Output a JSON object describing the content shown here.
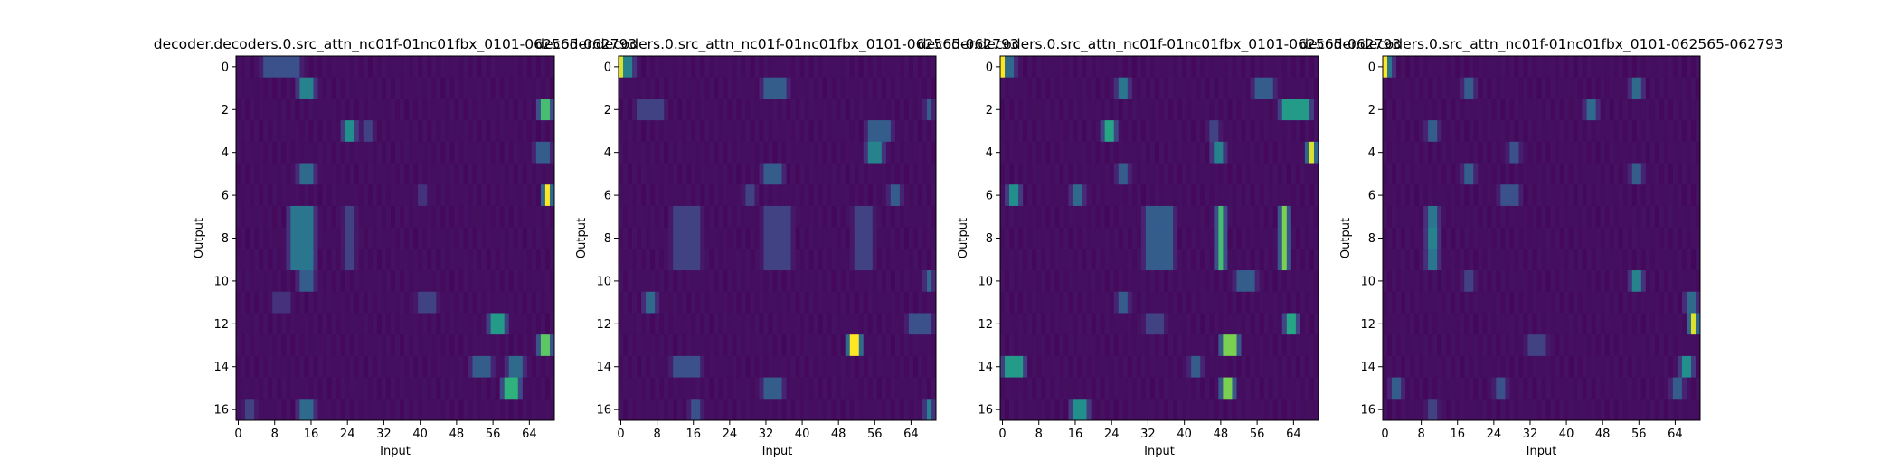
{
  "chart_data": [
    {
      "type": "heatmap",
      "title": "decoder.decoders.0.src_attn_nc01f-01nc01fbx_0101-062565-062793",
      "xlabel": "Input",
      "ylabel": "Output",
      "x_ticks": [
        0,
        8,
        16,
        24,
        32,
        40,
        48,
        56,
        64
      ],
      "y_ticks": [
        0,
        2,
        4,
        6,
        8,
        10,
        12,
        14,
        16
      ],
      "xlim": [
        0,
        70
      ],
      "ylim": [
        16,
        0
      ],
      "rows": 17,
      "cols": 70,
      "colormap": "viridis",
      "peaks": [
        {
          "row": 0,
          "cols": [
            [
              6,
              14,
              0.25
            ]
          ]
        },
        {
          "row": 1,
          "cols": [
            [
              14,
              17,
              0.45
            ]
          ]
        },
        {
          "row": 2,
          "cols": [
            [
              67,
              69,
              0.7
            ]
          ]
        },
        {
          "row": 3,
          "cols": [
            [
              24,
              26,
              0.5
            ],
            [
              28,
              30,
              0.2
            ]
          ]
        },
        {
          "row": 4,
          "cols": [
            [
              66,
              69,
              0.3
            ]
          ]
        },
        {
          "row": 5,
          "cols": [
            [
              14,
              17,
              0.35
            ]
          ]
        },
        {
          "row": 6,
          "cols": [
            [
              68,
              69,
              1.0
            ],
            [
              40,
              42,
              0.15
            ]
          ]
        },
        {
          "row": 7,
          "cols": [
            [
              12,
              17,
              0.4
            ],
            [
              24,
              26,
              0.2
            ]
          ]
        },
        {
          "row": 8,
          "cols": [
            [
              12,
              17,
              0.4
            ],
            [
              24,
              26,
              0.2
            ]
          ]
        },
        {
          "row": 9,
          "cols": [
            [
              12,
              17,
              0.4
            ],
            [
              24,
              26,
              0.2
            ]
          ]
        },
        {
          "row": 10,
          "cols": [
            [
              14,
              17,
              0.3
            ]
          ]
        },
        {
          "row": 11,
          "cols": [
            [
              8,
              12,
              0.15
            ],
            [
              40,
              44,
              0.2
            ]
          ]
        },
        {
          "row": 12,
          "cols": [
            [
              56,
              59,
              0.55
            ]
          ]
        },
        {
          "row": 13,
          "cols": [
            [
              67,
              69,
              0.75
            ]
          ]
        },
        {
          "row": 14,
          "cols": [
            [
              52,
              56,
              0.3
            ],
            [
              60,
              63,
              0.35
            ]
          ]
        },
        {
          "row": 15,
          "cols": [
            [
              59,
              62,
              0.65
            ]
          ]
        },
        {
          "row": 16,
          "cols": [
            [
              14,
              17,
              0.35
            ],
            [
              2,
              4,
              0.2
            ]
          ]
        }
      ]
    },
    {
      "type": "heatmap",
      "title": "decoder.decoders.0.src_attn_nc01f-01nc01fbx_0101-062565-062793",
      "xlabel": "Input",
      "ylabel": "Output",
      "x_ticks": [
        0,
        8,
        16,
        24,
        32,
        40,
        48,
        56,
        64
      ],
      "y_ticks": [
        0,
        2,
        4,
        6,
        8,
        10,
        12,
        14,
        16
      ],
      "xlim": [
        0,
        70
      ],
      "ylim": [
        16,
        0
      ],
      "rows": 17,
      "cols": 70,
      "colormap": "viridis",
      "peaks": [
        {
          "row": 0,
          "cols": [
            [
              0,
              1,
              0.95
            ],
            [
              1,
              3,
              0.45
            ]
          ]
        },
        {
          "row": 1,
          "cols": [
            [
              32,
              37,
              0.3
            ]
          ]
        },
        {
          "row": 2,
          "cols": [
            [
              4,
              10,
              0.2
            ],
            [
              68,
              69,
              0.3
            ]
          ]
        },
        {
          "row": 3,
          "cols": [
            [
              55,
              60,
              0.3
            ]
          ]
        },
        {
          "row": 4,
          "cols": [
            [
              55,
              58,
              0.45
            ]
          ]
        },
        {
          "row": 5,
          "cols": [
            [
              32,
              36,
              0.3
            ]
          ]
        },
        {
          "row": 6,
          "cols": [
            [
              60,
              62,
              0.3
            ],
            [
              28,
              30,
              0.2
            ]
          ]
        },
        {
          "row": 7,
          "cols": [
            [
              12,
              18,
              0.2
            ],
            [
              32,
              38,
              0.2
            ],
            [
              52,
              56,
              0.2
            ]
          ]
        },
        {
          "row": 8,
          "cols": [
            [
              12,
              18,
              0.2
            ],
            [
              32,
              38,
              0.2
            ],
            [
              52,
              56,
              0.2
            ]
          ]
        },
        {
          "row": 9,
          "cols": [
            [
              12,
              18,
              0.2
            ],
            [
              32,
              38,
              0.2
            ],
            [
              52,
              56,
              0.2
            ]
          ]
        },
        {
          "row": 10,
          "cols": [
            [
              68,
              69,
              0.35
            ]
          ]
        },
        {
          "row": 11,
          "cols": [
            [
              6,
              8,
              0.35
            ]
          ]
        },
        {
          "row": 12,
          "cols": [
            [
              64,
              69,
              0.25
            ]
          ]
        },
        {
          "row": 13,
          "cols": [
            [
              51,
              53,
              1.0
            ]
          ]
        },
        {
          "row": 14,
          "cols": [
            [
              12,
              18,
              0.25
            ]
          ]
        },
        {
          "row": 15,
          "cols": [
            [
              32,
              36,
              0.3
            ]
          ]
        },
        {
          "row": 16,
          "cols": [
            [
              16,
              18,
              0.25
            ],
            [
              68,
              69,
              0.45
            ]
          ]
        }
      ]
    },
    {
      "type": "heatmap",
      "title": "decoder.decoders.0.src_attn_nc01f-01nc01fbx_0101-062565-062793",
      "xlabel": "Input",
      "ylabel": "Output",
      "x_ticks": [
        0,
        8,
        16,
        24,
        32,
        40,
        48,
        56,
        64
      ],
      "y_ticks": [
        0,
        2,
        4,
        6,
        8,
        10,
        12,
        14,
        16
      ],
      "xlim": [
        0,
        70
      ],
      "ylim": [
        16,
        0
      ],
      "rows": 17,
      "cols": 70,
      "colormap": "viridis",
      "peaks": [
        {
          "row": 0,
          "cols": [
            [
              0,
              1,
              1.0
            ],
            [
              1,
              3,
              0.35
            ]
          ]
        },
        {
          "row": 1,
          "cols": [
            [
              26,
              28,
              0.4
            ],
            [
              56,
              60,
              0.3
            ]
          ]
        },
        {
          "row": 2,
          "cols": [
            [
              62,
              68,
              0.55
            ]
          ]
        },
        {
          "row": 3,
          "cols": [
            [
              23,
              25,
              0.6
            ],
            [
              46,
              48,
              0.2
            ]
          ]
        },
        {
          "row": 4,
          "cols": [
            [
              47,
              49,
              0.45
            ],
            [
              68,
              69,
              0.95
            ]
          ]
        },
        {
          "row": 5,
          "cols": [
            [
              26,
              28,
              0.3
            ]
          ]
        },
        {
          "row": 6,
          "cols": [
            [
              2,
              4,
              0.5
            ],
            [
              16,
              18,
              0.35
            ]
          ]
        },
        {
          "row": 7,
          "cols": [
            [
              48,
              49,
              0.7
            ],
            [
              62,
              63,
              0.8
            ],
            [
              32,
              38,
              0.3
            ]
          ]
        },
        {
          "row": 8,
          "cols": [
            [
              48,
              49,
              0.7
            ],
            [
              62,
              63,
              0.8
            ],
            [
              32,
              38,
              0.3
            ]
          ]
        },
        {
          "row": 9,
          "cols": [
            [
              48,
              49,
              0.7
            ],
            [
              62,
              63,
              0.8
            ],
            [
              32,
              38,
              0.3
            ]
          ]
        },
        {
          "row": 10,
          "cols": [
            [
              52,
              56,
              0.3
            ]
          ]
        },
        {
          "row": 11,
          "cols": [
            [
              26,
              28,
              0.3
            ]
          ]
        },
        {
          "row": 12,
          "cols": [
            [
              63,
              65,
              0.6
            ],
            [
              32,
              36,
              0.2
            ]
          ]
        },
        {
          "row": 13,
          "cols": [
            [
              49,
              52,
              0.8
            ]
          ]
        },
        {
          "row": 14,
          "cols": [
            [
              1,
              5,
              0.55
            ],
            [
              42,
              44,
              0.3
            ]
          ]
        },
        {
          "row": 15,
          "cols": [
            [
              49,
              51,
              0.8
            ]
          ]
        },
        {
          "row": 16,
          "cols": [
            [
              16,
              19,
              0.5
            ]
          ]
        }
      ]
    },
    {
      "type": "heatmap",
      "title": "decoder.decoders.0.src_attn_nc01f-01nc01fbx_0101-062565-062793",
      "xlabel": "Input",
      "ylabel": "Output",
      "x_ticks": [
        0,
        8,
        16,
        24,
        32,
        40,
        48,
        56,
        64
      ],
      "y_ticks": [
        0,
        2,
        4,
        6,
        8,
        10,
        12,
        14,
        16
      ],
      "xlim": [
        0,
        70
      ],
      "ylim": [
        16,
        0
      ],
      "rows": 17,
      "cols": 70,
      "colormap": "viridis",
      "peaks": [
        {
          "row": 0,
          "cols": [
            [
              0,
              1,
              1.0
            ],
            [
              1,
              2,
              0.4
            ]
          ]
        },
        {
          "row": 1,
          "cols": [
            [
              18,
              20,
              0.3
            ],
            [
              55,
              57,
              0.35
            ]
          ]
        },
        {
          "row": 2,
          "cols": [
            [
              45,
              47,
              0.35
            ]
          ]
        },
        {
          "row": 3,
          "cols": [
            [
              10,
              12,
              0.3
            ]
          ]
        },
        {
          "row": 4,
          "cols": [
            [
              28,
              30,
              0.25
            ]
          ]
        },
        {
          "row": 5,
          "cols": [
            [
              18,
              20,
              0.3
            ],
            [
              55,
              57,
              0.3
            ]
          ]
        },
        {
          "row": 6,
          "cols": [
            [
              26,
              30,
              0.25
            ]
          ]
        },
        {
          "row": 7,
          "cols": [
            [
              10,
              12,
              0.4
            ]
          ]
        },
        {
          "row": 8,
          "cols": [
            [
              10,
              12,
              0.45
            ]
          ]
        },
        {
          "row": 9,
          "cols": [
            [
              10,
              12,
              0.4
            ]
          ]
        },
        {
          "row": 10,
          "cols": [
            [
              55,
              57,
              0.45
            ],
            [
              18,
              20,
              0.2
            ]
          ]
        },
        {
          "row": 11,
          "cols": [
            [
              67,
              69,
              0.35
            ]
          ]
        },
        {
          "row": 12,
          "cols": [
            [
              68,
              69,
              0.95
            ]
          ]
        },
        {
          "row": 13,
          "cols": [
            [
              32,
              36,
              0.2
            ]
          ]
        },
        {
          "row": 14,
          "cols": [
            [
              66,
              68,
              0.5
            ]
          ]
        },
        {
          "row": 15,
          "cols": [
            [
              2,
              4,
              0.3
            ],
            [
              25,
              27,
              0.25
            ],
            [
              64,
              66,
              0.3
            ]
          ]
        },
        {
          "row": 16,
          "cols": [
            [
              10,
              12,
              0.2
            ]
          ]
        }
      ]
    }
  ]
}
